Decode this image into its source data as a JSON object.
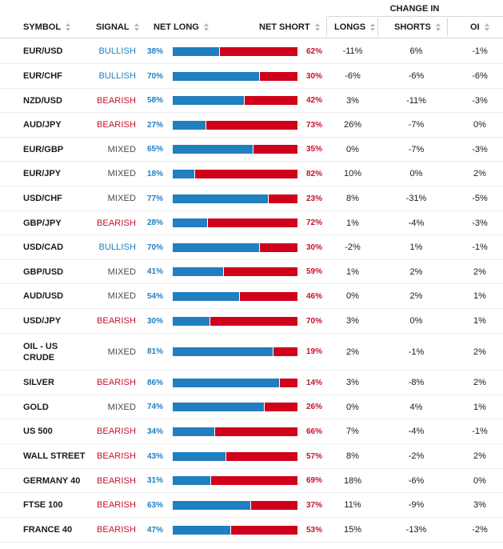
{
  "header": {
    "change_in": "CHANGE IN",
    "symbol": "SYMBOL",
    "signal": "SIGNAL",
    "net_long": "NET LONG",
    "net_short": "NET SHORT",
    "longs": "LONGS",
    "shorts": "SHORTS",
    "oi": "OI",
    "sort_icon": "sort-arrows-icon"
  },
  "colors": {
    "long_blue": "#1f7fbf",
    "short_red": "#d0021b",
    "bearish_red": "#c8102e",
    "mixed_gray": "#4a4a4a"
  },
  "rows": [
    {
      "symbol": "EUR/USD",
      "signal": "BULLISH",
      "net_long": "38%",
      "long_pct": 38,
      "net_short": "62%",
      "longs": "-11%",
      "shorts": "6%",
      "oi": "-1%"
    },
    {
      "symbol": "EUR/CHF",
      "signal": "BULLISH",
      "net_long": "70%",
      "long_pct": 70,
      "net_short": "30%",
      "longs": "-6%",
      "shorts": "-6%",
      "oi": "-6%"
    },
    {
      "symbol": "NZD/USD",
      "signal": "BEARISH",
      "net_long": "58%",
      "long_pct": 58,
      "net_short": "42%",
      "longs": "3%",
      "shorts": "-11%",
      "oi": "-3%"
    },
    {
      "symbol": "AUD/JPY",
      "signal": "BEARISH",
      "net_long": "27%",
      "long_pct": 27,
      "net_short": "73%",
      "longs": "26%",
      "shorts": "-7%",
      "oi": "0%"
    },
    {
      "symbol": "EUR/GBP",
      "signal": "MIXED",
      "net_long": "65%",
      "long_pct": 65,
      "net_short": "35%",
      "longs": "0%",
      "shorts": "-7%",
      "oi": "-3%"
    },
    {
      "symbol": "EUR/JPY",
      "signal": "MIXED",
      "net_long": "18%",
      "long_pct": 18,
      "net_short": "82%",
      "longs": "10%",
      "shorts": "0%",
      "oi": "2%"
    },
    {
      "symbol": "USD/CHF",
      "signal": "MIXED",
      "net_long": "77%",
      "long_pct": 77,
      "net_short": "23%",
      "longs": "8%",
      "shorts": "-31%",
      "oi": "-5%"
    },
    {
      "symbol": "GBP/JPY",
      "signal": "BEARISH",
      "net_long": "28%",
      "long_pct": 28,
      "net_short": "72%",
      "longs": "1%",
      "shorts": "-4%",
      "oi": "-3%"
    },
    {
      "symbol": "USD/CAD",
      "signal": "BULLISH",
      "net_long": "70%",
      "long_pct": 70,
      "net_short": "30%",
      "longs": "-2%",
      "shorts": "1%",
      "oi": "-1%"
    },
    {
      "symbol": "GBP/USD",
      "signal": "MIXED",
      "net_long": "41%",
      "long_pct": 41,
      "net_short": "59%",
      "longs": "1%",
      "shorts": "2%",
      "oi": "2%"
    },
    {
      "symbol": "AUD/USD",
      "signal": "MIXED",
      "net_long": "54%",
      "long_pct": 54,
      "net_short": "46%",
      "longs": "0%",
      "shorts": "2%",
      "oi": "1%"
    },
    {
      "symbol": "USD/JPY",
      "signal": "BEARISH",
      "net_long": "30%",
      "long_pct": 30,
      "net_short": "70%",
      "longs": "3%",
      "shorts": "0%",
      "oi": "1%"
    },
    {
      "symbol": "OIL - US CRUDE",
      "signal": "MIXED",
      "net_long": "81%",
      "long_pct": 81,
      "net_short": "19%",
      "longs": "2%",
      "shorts": "-1%",
      "oi": "2%"
    },
    {
      "symbol": "SILVER",
      "signal": "BEARISH",
      "net_long": "86%",
      "long_pct": 86,
      "net_short": "14%",
      "longs": "3%",
      "shorts": "-8%",
      "oi": "2%"
    },
    {
      "symbol": "GOLD",
      "signal": "MIXED",
      "net_long": "74%",
      "long_pct": 74,
      "net_short": "26%",
      "longs": "0%",
      "shorts": "4%",
      "oi": "1%"
    },
    {
      "symbol": "US 500",
      "signal": "BEARISH",
      "net_long": "34%",
      "long_pct": 34,
      "net_short": "66%",
      "longs": "7%",
      "shorts": "-4%",
      "oi": "-1%"
    },
    {
      "symbol": "WALL STREET",
      "signal": "BEARISH",
      "net_long": "43%",
      "long_pct": 43,
      "net_short": "57%",
      "longs": "8%",
      "shorts": "-2%",
      "oi": "2%"
    },
    {
      "symbol": "GERMANY 40",
      "signal": "BEARISH",
      "net_long": "31%",
      "long_pct": 31,
      "net_short": "69%",
      "longs": "18%",
      "shorts": "-6%",
      "oi": "0%"
    },
    {
      "symbol": "FTSE 100",
      "signal": "BEARISH",
      "net_long": "63%",
      "long_pct": 63,
      "net_short": "37%",
      "longs": "11%",
      "shorts": "-9%",
      "oi": "3%"
    },
    {
      "symbol": "FRANCE 40",
      "signal": "BEARISH",
      "net_long": "47%",
      "long_pct": 47,
      "net_short": "53%",
      "longs": "15%",
      "shorts": "-13%",
      "oi": "-2%"
    }
  ]
}
